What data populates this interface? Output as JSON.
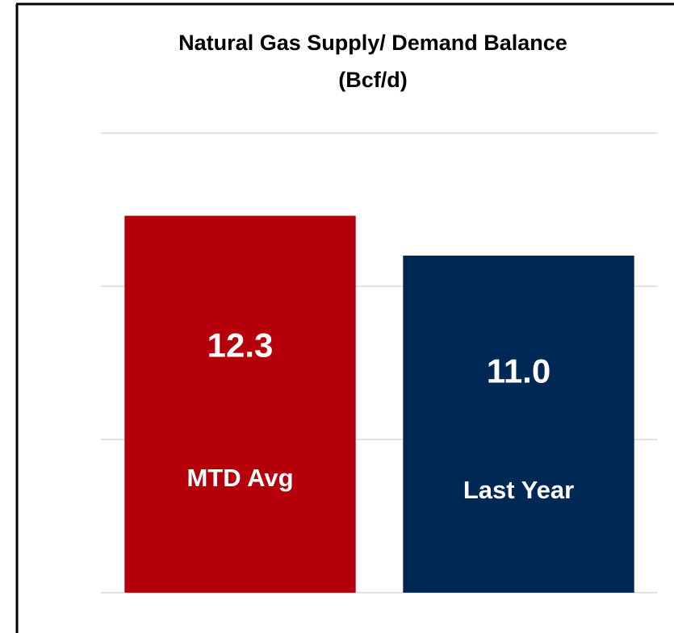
{
  "chart_data": {
    "type": "bar",
    "title": "Natural Gas Supply/ Demand Balance",
    "subtitle": "(Bcf/d)",
    "categories": [
      "MTD Avg",
      "Last Year"
    ],
    "values": [
      12.3,
      11.0
    ],
    "value_labels": [
      "12.3",
      "11.0"
    ],
    "colors": [
      "#b5000b",
      "#002855"
    ],
    "ylim": [
      0,
      15
    ],
    "yticks": [
      0,
      5,
      10,
      15
    ],
    "grid": true
  }
}
